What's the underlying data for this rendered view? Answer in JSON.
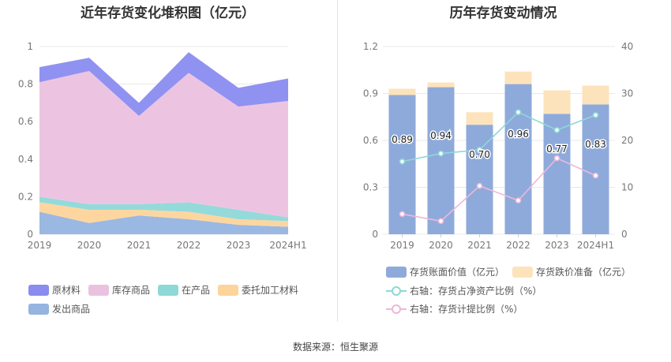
{
  "left": {
    "title": "近年存货变化堆积图（亿元）",
    "legend": [
      {
        "label": "原材料",
        "color": "#8a8cf0"
      },
      {
        "label": "库存商品",
        "color": "#ebc1e0"
      },
      {
        "label": "在产品",
        "color": "#8fd8d8"
      },
      {
        "label": "委托加工材料",
        "color": "#fdd49a"
      },
      {
        "label": "发出商品",
        "color": "#95b4e0"
      }
    ]
  },
  "right": {
    "title": "历年存货变动情况",
    "legend": [
      {
        "label": "存货账面价值（亿元）",
        "color": "#8eaadb",
        "kind": "box"
      },
      {
        "label": "存货跌价准备（亿元）",
        "color": "#fde3bb",
        "kind": "box"
      },
      {
        "label": "右轴：存货占净资产比例（%）",
        "color": "#8ed8d8",
        "kind": "line"
      },
      {
        "label": "右轴：存货计提比例（%）",
        "color": "#edb8d8",
        "kind": "line"
      }
    ]
  },
  "source": "数据来源：恒生聚源",
  "chart_data": [
    {
      "type": "area",
      "stacked": true,
      "title": "近年存货变化堆积图（亿元）",
      "categories": [
        "2019",
        "2020",
        "2021",
        "2022",
        "2023",
        "2024H1"
      ],
      "ylim": [
        0,
        1
      ],
      "yticks": [
        "0",
        "0.2",
        "0.4",
        "0.6",
        "0.8",
        "1"
      ],
      "grid": true,
      "legend_position": "bottom",
      "series": [
        {
          "name": "发出商品",
          "color": "#95b4e0",
          "values": [
            0.12,
            0.06,
            0.1,
            0.08,
            0.05,
            0.04
          ]
        },
        {
          "name": "委托加工材料",
          "color": "#fdd49a",
          "values": [
            0.05,
            0.07,
            0.03,
            0.04,
            0.03,
            0.03
          ]
        },
        {
          "name": "在产品",
          "color": "#8fd8d8",
          "values": [
            0.03,
            0.03,
            0.03,
            0.05,
            0.05,
            0.02
          ]
        },
        {
          "name": "库存商品",
          "color": "#ebc1e0",
          "values": [
            0.61,
            0.71,
            0.47,
            0.69,
            0.55,
            0.62
          ]
        },
        {
          "name": "原材料",
          "color": "#8a8cf0",
          "values": [
            0.08,
            0.07,
            0.07,
            0.11,
            0.1,
            0.12
          ]
        }
      ]
    },
    {
      "type": "bar",
      "stacked": true,
      "title": "历年存货变动情况",
      "categories": [
        "2019",
        "2020",
        "2021",
        "2022",
        "2023",
        "2024H1"
      ],
      "ylim": [
        0,
        1.2
      ],
      "yticks": [
        "0",
        "0.3",
        "0.6",
        "0.9",
        "1.2"
      ],
      "y2lim": [
        0,
        40
      ],
      "y2ticks": [
        "0",
        "10",
        "20",
        "30",
        "40"
      ],
      "grid": true,
      "legend_position": "bottom",
      "series": [
        {
          "name": "存货账面价值（亿元）",
          "color": "#8eaadb",
          "axis": "left",
          "values": [
            0.89,
            0.94,
            0.7,
            0.96,
            0.77,
            0.83
          ],
          "labels": [
            "0.89",
            "0.94",
            "0.70",
            "0.96",
            "0.77",
            "0.83"
          ]
        },
        {
          "name": "存货跌价准备（亿元）",
          "color": "#fde3bb",
          "axis": "left",
          "values": [
            0.04,
            0.03,
            0.08,
            0.08,
            0.15,
            0.12
          ]
        },
        {
          "name": "右轴：存货占净资产比例（%）",
          "color": "#8ed8d8",
          "axis": "right",
          "type": "line",
          "values": [
            15.5,
            17.2,
            18.0,
            26.0,
            22.2,
            25.4
          ]
        },
        {
          "name": "右轴：存货计提比例（%）",
          "color": "#edb8d8",
          "axis": "right",
          "type": "line",
          "values": [
            4.3,
            2.8,
            10.3,
            7.2,
            16.2,
            12.5
          ]
        }
      ]
    }
  ]
}
